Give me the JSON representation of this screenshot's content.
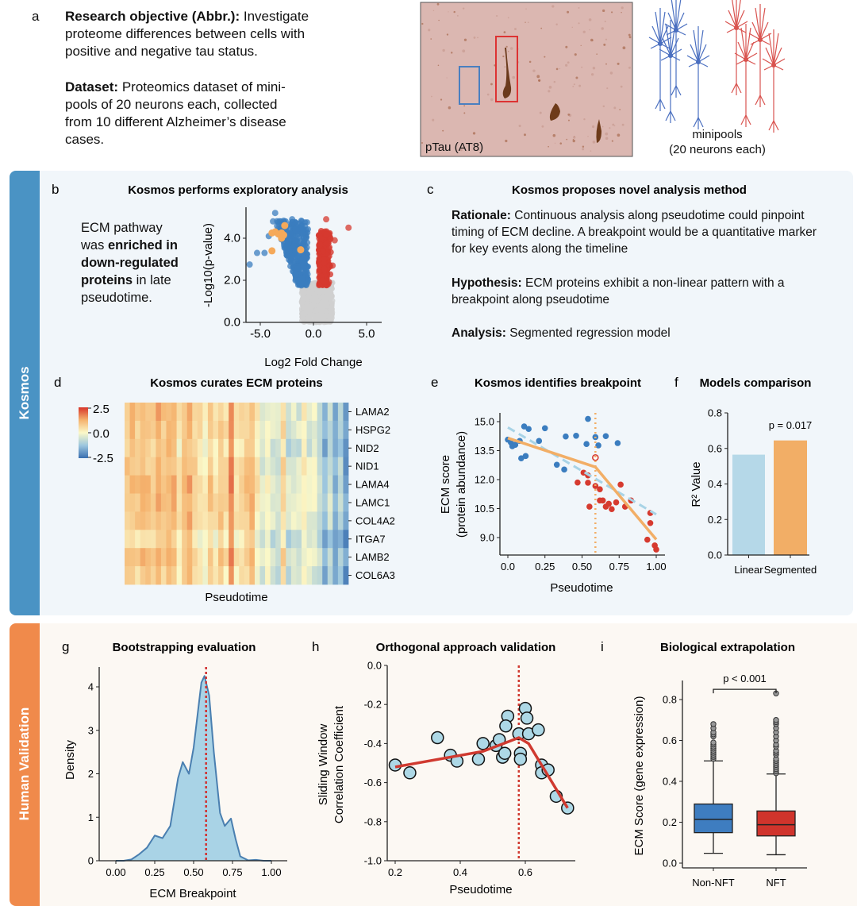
{
  "panel_a": {
    "label": "a",
    "objective_bold": "Research objective (Abbr.):",
    "objective_text": " Investigate proteome differences between cells with positive and negative tau status.",
    "dataset_bold": "Dataset:",
    "dataset_text": " Proteomics dataset of mini-pools of 20 neurons each, collected from 10 different Alzheimer’s disease cases.",
    "image_caption": "pTau (AT8)",
    "minipools_line1": "minipools",
    "minipools_line2": "(20 neurons each)",
    "neuron_colors": {
      "negative": "#4a6fc0",
      "positive": "#d9534f"
    }
  },
  "sections": {
    "kosmos": {
      "label": "Kosmos",
      "color": "#4a93c4"
    },
    "human": {
      "label": "Human Validation",
      "color": "#f08a4b"
    }
  },
  "panel_b": {
    "label": "b",
    "title": "Kosmos performs exploratory analysis",
    "text_1": "ECM pathway",
    "text_2a": "was ",
    "text_2b": "enriched in",
    "text_3": "down-regulated",
    "text_4a": "proteins",
    "text_4b": " in late",
    "text_5": "pseudotime."
  },
  "panel_c": {
    "label": "c",
    "title": "Kosmos proposes novel analysis method",
    "rationale_bold": "Rationale:",
    "rationale_text": " Continuous analysis along pseudotime could pinpoint timing of ECM decline. A breakpoint would be a quantitative marker for key events along the timeline",
    "hypothesis_bold": "Hypothesis:",
    "hypothesis_text": " ECM proteins exhibit a non-linear pattern with a breakpoint along pseudotime",
    "analysis_bold": "Analysis:",
    "analysis_text": " Segmented regression model"
  },
  "panel_d": {
    "label": "d",
    "title": "Kosmos curates ECM proteins"
  },
  "panel_e": {
    "label": "e",
    "title": "Kosmos identifies breakpoint"
  },
  "panel_f": {
    "label": "f",
    "title": "Models comparison"
  },
  "panel_g": {
    "label": "g",
    "title": "Bootstrapping evaluation"
  },
  "panel_h": {
    "label": "h",
    "title": "Orthogonal approach validation"
  },
  "panel_i": {
    "label": "i",
    "title": "Biological extrapolation"
  },
  "chart_data": [
    {
      "id": "b",
      "type": "scatter",
      "xlabel": "Log2 Fold Change",
      "ylabel": "-Log10(p-value)",
      "xlim": [
        -6.5,
        6.3
      ],
      "ylim": [
        0,
        5.5
      ],
      "xticks": [
        "-5.0",
        "0.0",
        "5.0"
      ],
      "xtick_values": [
        -5,
        0,
        5
      ],
      "yticks": [
        "0.0",
        "2.0",
        "4.0"
      ],
      "ytick_values": [
        0,
        2,
        4
      ],
      "colors": {
        "down": "#3b7dbf",
        "up": "#d63a2f",
        "ns": "#cfcfcf",
        "ecm": "#f5a95a"
      },
      "ecm_points": [
        [
          -3.9,
          4.25
        ],
        [
          -3.6,
          4.3
        ],
        [
          -3.3,
          4.2
        ],
        [
          -3.0,
          4.25
        ],
        [
          -2.7,
          4.6
        ],
        [
          -3.0,
          4.0
        ],
        [
          -2.8,
          4.15
        ],
        [
          -3.9,
          3.4
        ],
        [
          -1.2,
          3.45
        ]
      ],
      "down_outliers": [
        [
          -6.0,
          2.75
        ],
        [
          -5.3,
          3.3
        ],
        [
          -4.6,
          3.3
        ],
        [
          -3.8,
          4.8
        ],
        [
          -3.6,
          5.2
        ],
        [
          -2.0,
          4.9
        ],
        [
          -4.2,
          4.1
        ]
      ],
      "up_outliers": [
        [
          1.2,
          4.9
        ],
        [
          3.3,
          4.5
        ],
        [
          2.0,
          3.9
        ],
        [
          1.8,
          2.7
        ]
      ]
    },
    {
      "id": "d",
      "type": "heatmap",
      "xlabel": "Pseudotime",
      "rows": [
        "LAMA2",
        "HSPG2",
        "NID2",
        "NID1",
        "LAMA4",
        "LAMC1",
        "COL4A2",
        "ITGA7",
        "LAMB2",
        "COL6A3"
      ],
      "colorbar_ticks": [
        "2.5",
        "0.0",
        "-2.5"
      ],
      "colorbar_values": [
        2.5,
        0,
        -2.5
      ],
      "column_profile": [
        0.9,
        1.0,
        0.8,
        1.1,
        0.9,
        0.8,
        1.3,
        0.9,
        1.2,
        1.1,
        0.3,
        0.9,
        1.2,
        0.6,
        0.4,
        0.2,
        0.8,
        0.3,
        0.9,
        0.4,
        1.6,
        0.3,
        0.5,
        0.8,
        1.0,
        0.2,
        -0.4,
        0.0,
        -0.3,
        -0.5,
        0.6,
        -0.6,
        -0.3,
        -0.4,
        0.1,
        -0.3,
        -0.2,
        -0.6,
        -1.4,
        -0.6,
        -1.5,
        -0.9,
        -1.8
      ],
      "row_offsets": [
        0,
        0,
        -0.2,
        0,
        0.1,
        0.1,
        0,
        -0.4,
        0,
        -0.2
      ]
    },
    {
      "id": "e",
      "type": "scatter",
      "xlabel": "Pseudotime",
      "ylabel_1": "ECM score",
      "ylabel_2": "(protein abundance)",
      "xlim": [
        -0.05,
        1.06
      ],
      "ylim": [
        8.1,
        15.6
      ],
      "xticks": [
        "0.0",
        "0.25",
        "0.50",
        "0.75",
        "1.00"
      ],
      "xtick_values": [
        0,
        0.25,
        0.5,
        0.75,
        1.0
      ],
      "yticks": [
        "9.0",
        "10.5",
        "12.0",
        "13.5",
        "15.0"
      ],
      "ytick_values": [
        9,
        10.5,
        12,
        13.5,
        15
      ],
      "breakpoint": 0.59,
      "blue_points": [
        [
          0,
          14.07
        ],
        [
          0.02,
          13.93
        ],
        [
          0.03,
          13.73
        ],
        [
          0.05,
          13.8
        ],
        [
          0.08,
          14.0
        ],
        [
          0.09,
          13.1
        ],
        [
          0.11,
          14.75
        ],
        [
          0.12,
          13.22
        ],
        [
          0.14,
          14.62
        ],
        [
          0.21,
          14.0
        ],
        [
          0.25,
          14.66
        ],
        [
          0.33,
          12.77
        ],
        [
          0.38,
          12.52
        ],
        [
          0.39,
          14.23
        ],
        [
          0.46,
          14.27
        ],
        [
          0.53,
          13.84
        ],
        [
          0.54,
          15.14
        ],
        [
          0.59,
          14.2
        ],
        [
          0.61,
          13.77
        ],
        [
          0.66,
          14.25
        ],
        [
          0.74,
          13.89
        ]
      ],
      "red_points": [
        [
          0.51,
          12.36
        ],
        [
          0.54,
          12.22
        ],
        [
          0.47,
          11.85
        ],
        [
          0.54,
          11.84
        ],
        [
          0.59,
          11.67
        ],
        [
          0.62,
          11.5
        ],
        [
          0.76,
          11.74
        ],
        [
          0.55,
          10.6
        ],
        [
          0.62,
          10.92
        ],
        [
          0.64,
          10.92
        ],
        [
          0.66,
          10.6
        ],
        [
          0.68,
          10.75
        ],
        [
          0.7,
          10.47
        ],
        [
          0.73,
          10.82
        ],
        [
          0.79,
          10.6
        ],
        [
          0.83,
          10.92
        ],
        [
          0.96,
          10.27
        ],
        [
          0.96,
          9.75
        ],
        [
          0.94,
          8.89
        ],
        [
          0.99,
          8.59
        ],
        [
          1.0,
          8.38
        ]
      ],
      "open_point": [
        0.59,
        13.14
      ],
      "linear_fit": [
        [
          0,
          14.7
        ],
        [
          1.0,
          10.2
        ]
      ],
      "segmented_fit": [
        [
          0,
          14.15
        ],
        [
          0.59,
          12.65
        ],
        [
          1.0,
          8.9
        ]
      ],
      "colors": {
        "blue": "#3b7dbf",
        "red": "#d63a2f",
        "linear": "#a8d3e6",
        "segmented": "#f2ae66"
      }
    },
    {
      "id": "f",
      "type": "bar",
      "categories": [
        "Linear",
        "Segmented"
      ],
      "values": [
        0.565,
        0.645
      ],
      "ylabel": "R² Value",
      "ylim": [
        0,
        0.8
      ],
      "yticks": [
        "0.0",
        "0.2",
        "0.4",
        "0.6",
        "0.8"
      ],
      "ytick_values": [
        0,
        0.2,
        0.4,
        0.6,
        0.8
      ],
      "annotation": "p = 0.017",
      "colors": [
        "#b5d8e8",
        "#f2ae66"
      ]
    },
    {
      "id": "g",
      "type": "area",
      "xlabel": "ECM Breakpoint",
      "ylabel": "Density",
      "xlim": [
        -0.1,
        1.1
      ],
      "ylim": [
        0,
        4.5
      ],
      "xticks": [
        "0.00",
        "0.25",
        "0.50",
        "0.75",
        "1.00"
      ],
      "xtick_values": [
        0,
        0.25,
        0.5,
        0.75,
        1.0
      ],
      "yticks": [
        "0",
        "1",
        "2",
        "3",
        "4"
      ],
      "ytick_values": [
        0,
        1,
        2,
        3,
        4
      ],
      "x": [
        0.0,
        0.05,
        0.1,
        0.15,
        0.2,
        0.25,
        0.3,
        0.35,
        0.4,
        0.43,
        0.47,
        0.5,
        0.55,
        0.57,
        0.6,
        0.63,
        0.67,
        0.7,
        0.74,
        0.77,
        0.8,
        0.85,
        0.9,
        0.95,
        1.0
      ],
      "y": [
        0,
        0,
        0.03,
        0.15,
        0.3,
        0.58,
        0.52,
        0.8,
        1.9,
        2.27,
        2.0,
        2.6,
        4.1,
        4.25,
        3.8,
        2.5,
        1.1,
        0.8,
        0.97,
        0.5,
        0.1,
        0.01,
        0.02,
        0,
        0
      ],
      "breakpoint": 0.58,
      "colors": {
        "fill": "#a9d3e6",
        "line": "#4a7fb0",
        "breakpoint": "#d03030"
      }
    },
    {
      "id": "h",
      "type": "scatter",
      "xlabel": "Pseudotime",
      "ylabel_1": "Sliding Window",
      "ylabel_2": "Correlation Coefficient",
      "xlim": [
        0.18,
        0.77
      ],
      "ylim": [
        -1.0,
        0.0
      ],
      "xticks": [
        "0.2",
        "0.4",
        "0.6"
      ],
      "xtick_values": [
        0.2,
        0.4,
        0.6
      ],
      "yticks": [
        "0.0",
        "-0.2",
        "-0.4",
        "-0.6",
        "-0.8",
        "-1.0"
      ],
      "ytick_values": [
        0,
        -0.2,
        -0.4,
        -0.6,
        -0.8,
        -1.0
      ],
      "points": [
        [
          0.2,
          -0.51
        ],
        [
          0.245,
          -0.55
        ],
        [
          0.33,
          -0.37
        ],
        [
          0.37,
          -0.46
        ],
        [
          0.39,
          -0.49
        ],
        [
          0.456,
          -0.48
        ],
        [
          0.47,
          -0.4
        ],
        [
          0.51,
          -0.41
        ],
        [
          0.52,
          -0.38
        ],
        [
          0.53,
          -0.47
        ],
        [
          0.537,
          -0.45
        ],
        [
          0.546,
          -0.26
        ],
        [
          0.54,
          -0.31
        ],
        [
          0.58,
          -0.35
        ],
        [
          0.585,
          -0.45
        ],
        [
          0.585,
          -0.48
        ],
        [
          0.6,
          -0.22
        ],
        [
          0.605,
          -0.27
        ],
        [
          0.61,
          -0.35
        ],
        [
          0.64,
          -0.33
        ],
        [
          0.65,
          -0.51
        ],
        [
          0.65,
          -0.55
        ],
        [
          0.67,
          -0.535
        ],
        [
          0.695,
          -0.67
        ],
        [
          0.73,
          -0.73
        ]
      ],
      "fit": [
        [
          0.2,
          -0.52
        ],
        [
          0.47,
          -0.44
        ],
        [
          0.58,
          -0.37
        ],
        [
          0.61,
          -0.4
        ],
        [
          0.73,
          -0.73
        ]
      ],
      "breakpoint": 0.58,
      "colors": {
        "points": "#add8e6",
        "fit": "#d03a30"
      }
    },
    {
      "id": "i",
      "type": "box",
      "categories": [
        "Non-NFT",
        "NFT"
      ],
      "ylabel": "ECM Score (gene expression)",
      "ylim": [
        -0.026,
        0.893
      ],
      "yticks": [
        "0.0",
        "0.2",
        "0.4",
        "0.6",
        "0.8"
      ],
      "ytick_values": [
        0,
        0.2,
        0.4,
        0.6,
        0.8
      ],
      "boxes": [
        {
          "whisker_low": 0.048,
          "q1": 0.149,
          "median": 0.214,
          "q3": 0.289,
          "whisker_high": 0.5,
          "outliers": [
            0.51,
            0.52,
            0.53,
            0.54,
            0.55,
            0.56,
            0.57,
            0.58,
            0.59,
            0.62,
            0.63,
            0.64,
            0.66,
            0.68
          ]
        },
        {
          "whisker_low": 0.041,
          "q1": 0.133,
          "median": 0.188,
          "q3": 0.255,
          "whisker_high": 0.436,
          "outliers": [
            0.44,
            0.45,
            0.46,
            0.47,
            0.48,
            0.49,
            0.5,
            0.51,
            0.53,
            0.54,
            0.55,
            0.57,
            0.58,
            0.6,
            0.62,
            0.64,
            0.66,
            0.68,
            0.69,
            0.7,
            0.83
          ]
        }
      ],
      "annotation": "p < 0.001",
      "bracket_y": 0.85,
      "colors": [
        "#3e7dc0",
        "#d0342c"
      ]
    }
  ]
}
